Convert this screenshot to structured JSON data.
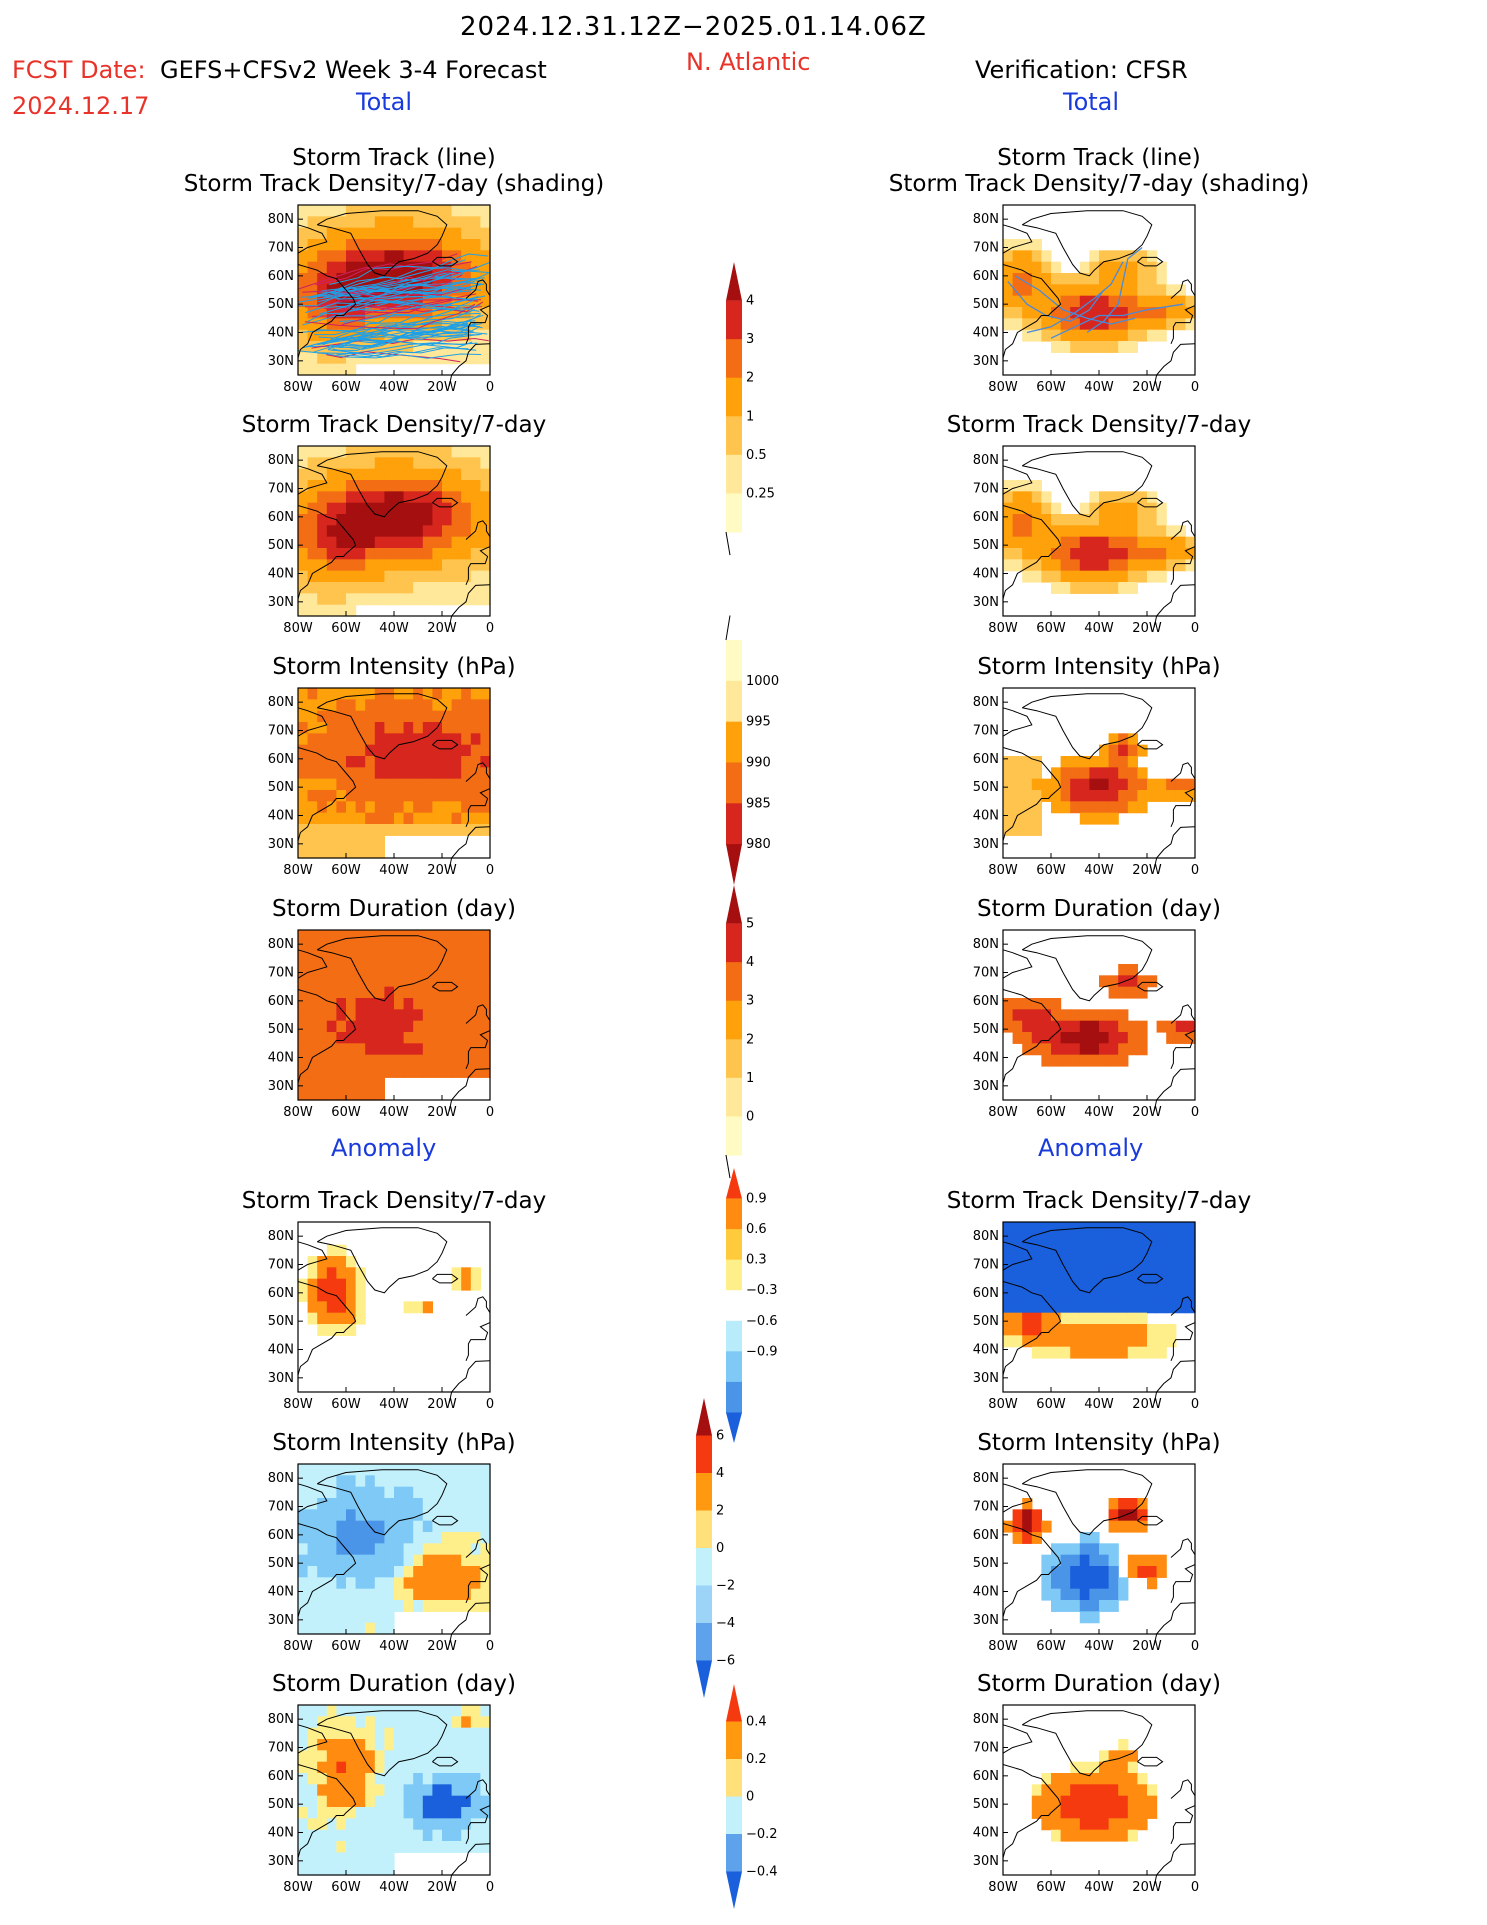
{
  "header": {
    "period": "2024.12.31.12Z−2025.01.14.06Z",
    "fcst_label": "FCST Date:",
    "fcst_date": "2024.12.17",
    "model": "GEFS+CFSv2 Week 3-4 Forecast",
    "region": "N. Atlantic",
    "verification": "Verification: CFSR",
    "total_left": "Total",
    "total_right": "Total",
    "anomaly_left": "Anomaly",
    "anomaly_right": "Anomaly"
  },
  "colors": {
    "title_red": "#e8332a",
    "label_blue": "#1a3bdc",
    "track_lines_fcst": [
      "#1ea0e8",
      "#d02060"
    ],
    "track_lines_obs": "#4a8ad8"
  },
  "axes": {
    "x_ticks": [
      "80W",
      "60W",
      "40W",
      "20W",
      "0"
    ],
    "y_ticks": [
      "80N",
      "70N",
      "60N",
      "50N",
      "40N",
      "30N"
    ],
    "lon_range": [
      -80,
      0
    ],
    "lat_range": [
      25,
      85
    ]
  },
  "chart_data": [
    {
      "type": "heatmap",
      "id": "fcst-track",
      "column": "forecast",
      "section": "total",
      "title_lines": [
        "Storm Track (line)",
        "Storm Track Density/7-day (shading)"
      ],
      "field": "track-fcst",
      "colorbar": "density"
    },
    {
      "type": "heatmap",
      "id": "obs-track",
      "column": "verification",
      "section": "total",
      "title_lines": [
        "Storm Track (line)",
        "Storm Track Density/7-day (shading)"
      ],
      "field": "track-obs",
      "colorbar": "density"
    },
    {
      "type": "heatmap",
      "id": "fcst-density",
      "column": "forecast",
      "section": "total",
      "title_lines": [
        "Storm Track Density/7-day"
      ],
      "field": "density-fcst",
      "colorbar": "density"
    },
    {
      "type": "heatmap",
      "id": "obs-density",
      "column": "verification",
      "section": "total",
      "title_lines": [
        "Storm Track Density/7-day"
      ],
      "field": "density-obs",
      "colorbar": "density"
    },
    {
      "type": "heatmap",
      "id": "fcst-intensity",
      "column": "forecast",
      "section": "total",
      "title_lines": [
        "Storm Intensity (hPa)"
      ],
      "field": "intensity-fcst",
      "colorbar": "intensity"
    },
    {
      "type": "heatmap",
      "id": "obs-intensity",
      "column": "verification",
      "section": "total",
      "title_lines": [
        "Storm Intensity (hPa)"
      ],
      "field": "intensity-obs",
      "colorbar": "intensity"
    },
    {
      "type": "heatmap",
      "id": "fcst-duration",
      "column": "forecast",
      "section": "total",
      "title_lines": [
        "Storm Duration (day)"
      ],
      "field": "duration-fcst",
      "colorbar": "duration"
    },
    {
      "type": "heatmap",
      "id": "obs-duration",
      "column": "verification",
      "section": "total",
      "title_lines": [
        "Storm Duration (day)"
      ],
      "field": "duration-obs",
      "colorbar": "duration"
    },
    {
      "type": "heatmap",
      "id": "fcst-density-anom",
      "column": "forecast",
      "section": "anomaly",
      "title_lines": [
        "Storm Track Density/7-day"
      ],
      "field": "danom-fcst",
      "colorbar": "density-anom"
    },
    {
      "type": "heatmap",
      "id": "obs-density-anom",
      "column": "verification",
      "section": "anomaly",
      "title_lines": [
        "Storm Track Density/7-day"
      ],
      "field": "danom-obs",
      "colorbar": "density-anom"
    },
    {
      "type": "heatmap",
      "id": "fcst-intensity-anom",
      "column": "forecast",
      "section": "anomaly",
      "title_lines": [
        "Storm Intensity (hPa)"
      ],
      "field": "ianom-fcst",
      "colorbar": "intensity-anom"
    },
    {
      "type": "heatmap",
      "id": "obs-intensity-anom",
      "column": "verification",
      "section": "anomaly",
      "title_lines": [
        "Storm Intensity (hPa)"
      ],
      "field": "ianom-obs",
      "colorbar": "intensity-anom"
    },
    {
      "type": "heatmap",
      "id": "fcst-duration-anom",
      "column": "forecast",
      "section": "anomaly",
      "title_lines": [
        "Storm Duration (day)"
      ],
      "field": "duranom-fcst",
      "colorbar": "duration-anom"
    },
    {
      "type": "heatmap",
      "id": "obs-duration-anom",
      "column": "verification",
      "section": "anomaly",
      "title_lines": [
        "Storm Duration (day)"
      ],
      "field": "duranom-obs",
      "colorbar": "duration-anom"
    }
  ],
  "colorbars": {
    "density": {
      "labels": [
        "4",
        "3",
        "2",
        "1",
        "0.5",
        "0.25"
      ],
      "colors": [
        "#a50f0f",
        "#d7261e",
        "#f36d14",
        "#ffa10a",
        "#ffc44d",
        "#ffe89a",
        "#fffbc2"
      ],
      "arrow_bottom": "open"
    },
    "intensity": {
      "labels": [
        "1000",
        "995",
        "990",
        "985",
        "980"
      ],
      "colors": [
        "#fffbc2",
        "#ffe89a",
        "#ffa10a",
        "#f36d14",
        "#d7261e",
        "#a50f0f"
      ],
      "arrow_top": "open"
    },
    "duration": {
      "labels": [
        "5",
        "4",
        "3",
        "2",
        "1",
        "0"
      ],
      "colors": [
        "#a50f0f",
        "#d7261e",
        "#f36d14",
        "#ffa10a",
        "#ffc44d",
        "#ffe89a",
        "#fffbc2"
      ],
      "arrow_bottom": "open"
    },
    "density-anom": {
      "labels": [
        "0.9",
        "0.6",
        "0.3",
        "−0.3",
        "−0.6",
        "−0.9"
      ],
      "colors": [
        "#f53a10",
        "#ff8c10",
        "#ffcb3c",
        "#ffef8a",
        "#ffffff",
        "#b8ecfb",
        "#7ec9f5",
        "#4a95e8",
        "#1a5fdb"
      ]
    },
    "intensity-anom": {
      "labels": [
        "6",
        "4",
        "2",
        "0",
        "−2",
        "−4",
        "−6"
      ],
      "colors": [
        "#a50f0f",
        "#f53a10",
        "#ff9a10",
        "#ffe07a",
        "#c2f1fc",
        "#9cd4f8",
        "#5fa2ec",
        "#1a5fdb"
      ]
    },
    "duration-anom": {
      "labels": [
        "0.4",
        "0.2",
        "0",
        "−0.2",
        "−0.4"
      ],
      "colors": [
        "#f53a10",
        "#ff9a10",
        "#ffe07a",
        "#c2f1fc",
        "#5fa2ec",
        "#1a5fdb"
      ]
    }
  }
}
